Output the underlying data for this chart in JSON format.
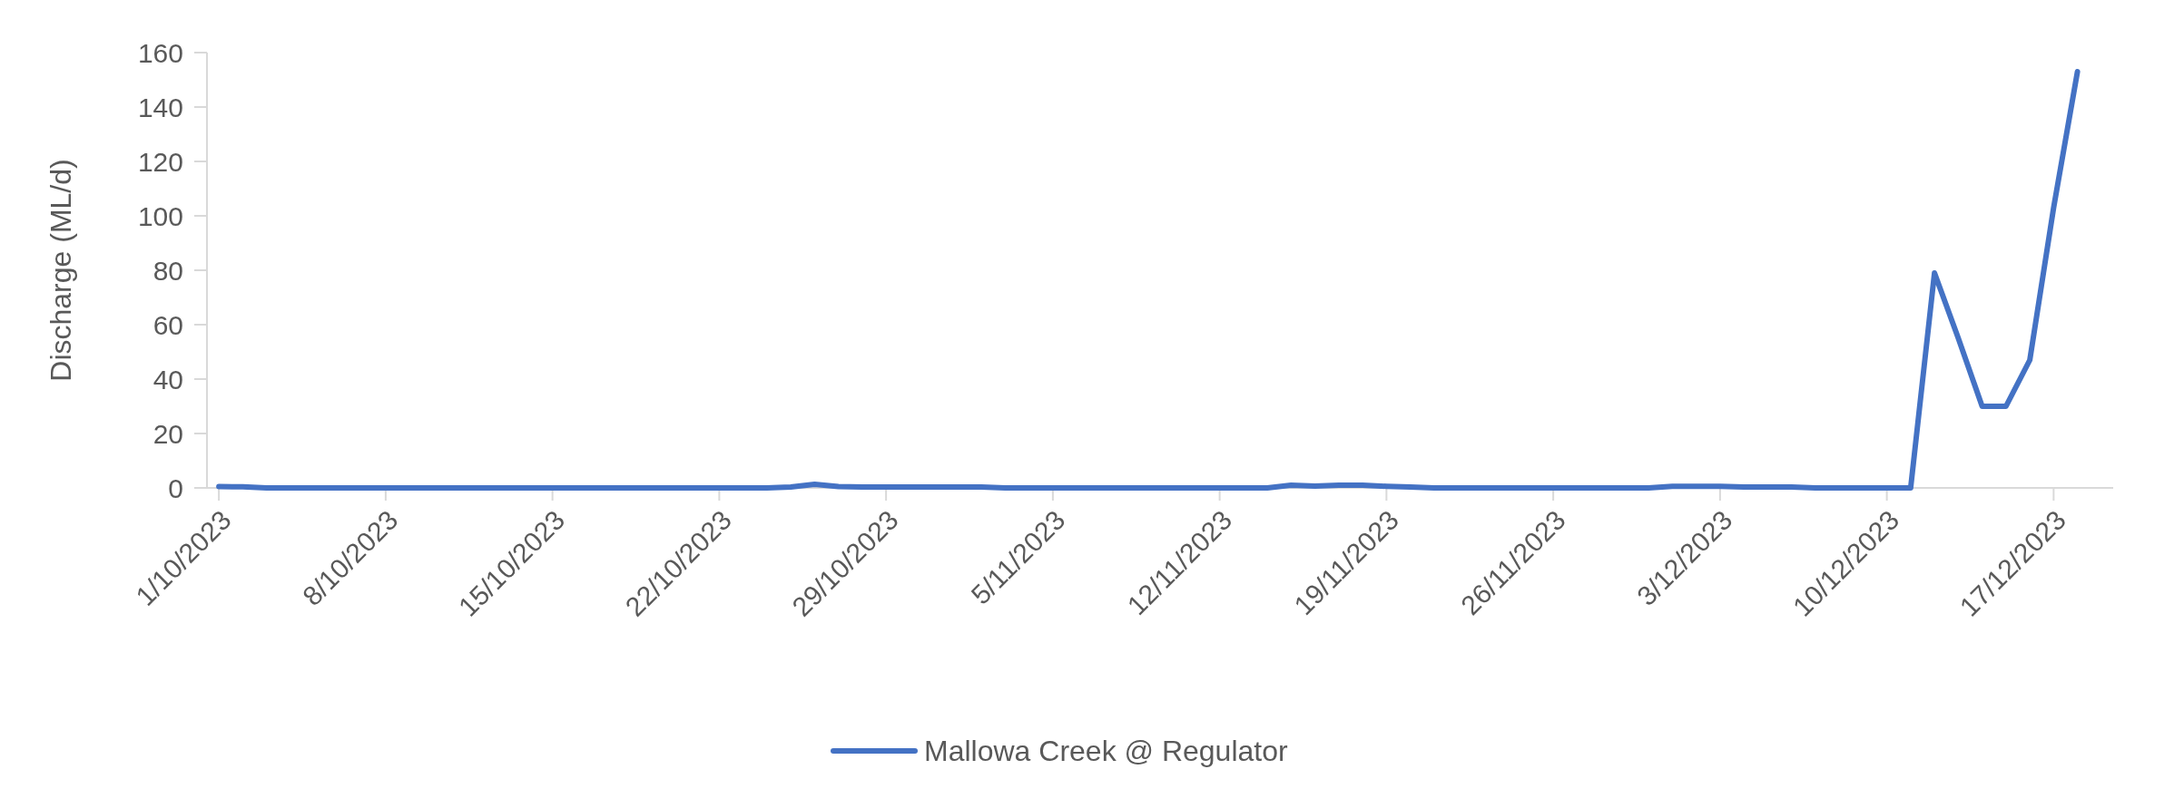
{
  "chart_data": {
    "type": "line",
    "ylabel": "Discharge (ML/d)",
    "x": [
      "2023-10-01",
      "2023-10-02",
      "2023-10-03",
      "2023-10-04",
      "2023-10-05",
      "2023-10-06",
      "2023-10-07",
      "2023-10-08",
      "2023-10-09",
      "2023-10-10",
      "2023-10-11",
      "2023-10-12",
      "2023-10-13",
      "2023-10-14",
      "2023-10-15",
      "2023-10-16",
      "2023-10-17",
      "2023-10-18",
      "2023-10-19",
      "2023-10-20",
      "2023-10-21",
      "2023-10-22",
      "2023-10-23",
      "2023-10-24",
      "2023-10-25",
      "2023-10-26",
      "2023-10-27",
      "2023-10-28",
      "2023-10-29",
      "2023-10-30",
      "2023-10-31",
      "2023-11-01",
      "2023-11-02",
      "2023-11-03",
      "2023-11-04",
      "2023-11-05",
      "2023-11-06",
      "2023-11-07",
      "2023-11-08",
      "2023-11-09",
      "2023-11-10",
      "2023-11-11",
      "2023-11-12",
      "2023-11-13",
      "2023-11-14",
      "2023-11-15",
      "2023-11-16",
      "2023-11-17",
      "2023-11-18",
      "2023-11-19",
      "2023-11-20",
      "2023-11-21",
      "2023-11-22",
      "2023-11-23",
      "2023-11-24",
      "2023-11-25",
      "2023-11-26",
      "2023-11-27",
      "2023-11-28",
      "2023-11-29",
      "2023-11-30",
      "2023-12-01",
      "2023-12-02",
      "2023-12-03",
      "2023-12-04",
      "2023-12-05",
      "2023-12-06",
      "2023-12-07",
      "2023-12-08",
      "2023-12-09",
      "2023-12-10",
      "2023-12-11",
      "2023-12-12",
      "2023-12-13",
      "2023-12-14",
      "2023-12-15",
      "2023-12-16",
      "2023-12-17",
      "2023-12-18"
    ],
    "series": [
      {
        "name": "Mallowa Creek @ Regulator",
        "color": "#4472c4",
        "values": [
          0.5,
          0.4,
          0,
          0,
          0,
          0,
          0,
          0,
          0,
          0,
          0,
          0,
          0,
          0,
          0,
          0,
          0,
          0,
          0,
          0,
          0,
          0,
          0,
          0,
          0.3,
          1.3,
          0.5,
          0.3,
          0.3,
          0.3,
          0.3,
          0.3,
          0.3,
          0,
          0,
          0,
          0,
          0,
          0,
          0,
          0,
          0,
          0,
          0,
          0,
          1,
          0.7,
          1,
          1,
          0.6,
          0.3,
          0,
          0,
          0,
          0,
          0,
          0,
          0,
          0,
          0,
          0,
          0.6,
          0.6,
          0.6,
          0.3,
          0.3,
          0.3,
          0,
          0,
          0,
          0,
          0,
          79,
          55,
          30,
          30,
          47,
          103,
          153
        ]
      }
    ],
    "xlim": [
      "2023-09-30T12:00",
      "2023-12-19T12:00"
    ],
    "xticks": [
      {
        "value": "2023-10-01",
        "label": "1/10/2023"
      },
      {
        "value": "2023-10-08",
        "label": "8/10/2023"
      },
      {
        "value": "2023-10-15",
        "label": "15/10/2023"
      },
      {
        "value": "2023-10-22",
        "label": "22/10/2023"
      },
      {
        "value": "2023-10-29",
        "label": "29/10/2023"
      },
      {
        "value": "2023-11-05",
        "label": "5/11/2023"
      },
      {
        "value": "2023-11-12",
        "label": "12/11/2023"
      },
      {
        "value": "2023-11-19",
        "label": "19/11/2023"
      },
      {
        "value": "2023-11-26",
        "label": "26/11/2023"
      },
      {
        "value": "2023-12-03",
        "label": "3/12/2023"
      },
      {
        "value": "2023-12-10",
        "label": "10/12/2023"
      },
      {
        "value": "2023-12-17",
        "label": "17/12/2023"
      }
    ],
    "ylim": [
      0,
      160
    ],
    "yticks": [
      0,
      20,
      40,
      60,
      80,
      100,
      120,
      140,
      160
    ],
    "grid": false,
    "legend": "bottom",
    "marker": "none",
    "line_style": "solid"
  }
}
